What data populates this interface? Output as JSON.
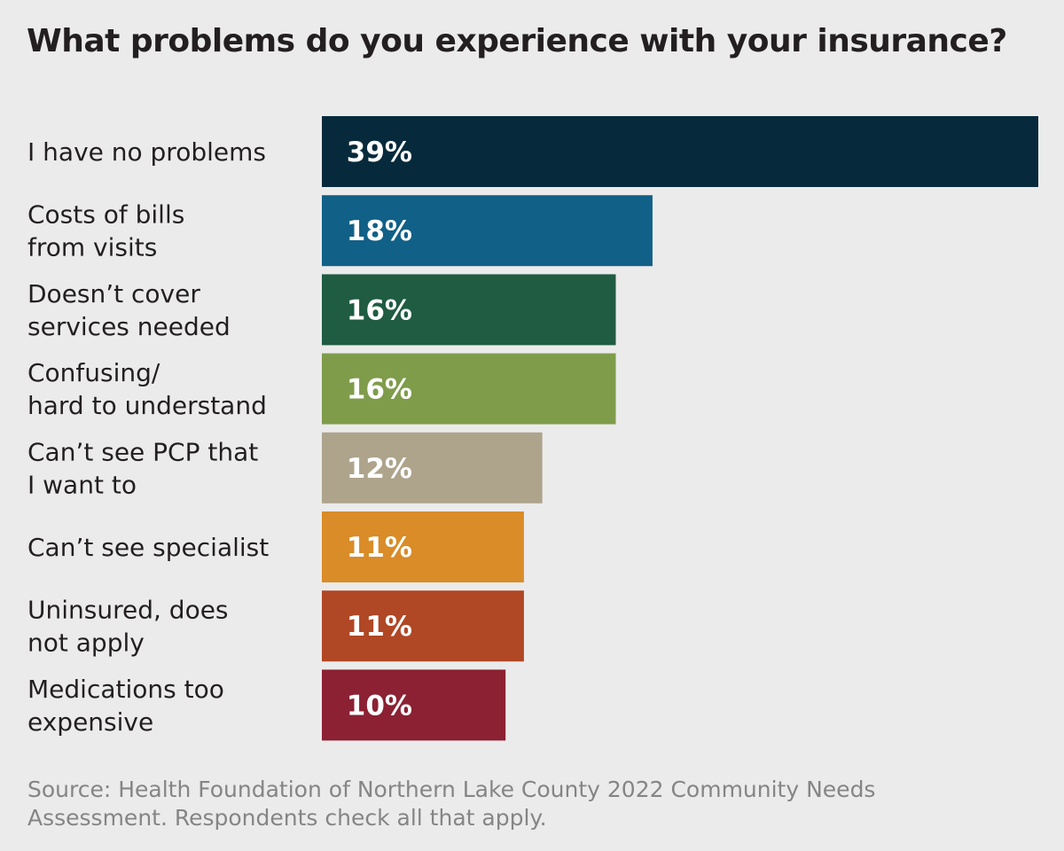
{
  "chart_data": {
    "type": "bar",
    "orientation": "horizontal",
    "title": "What problems do you experience with your insurance?",
    "categories": [
      [
        "I have no problems"
      ],
      [
        "Costs of bills",
        "from visits"
      ],
      [
        "Doesn’t cover",
        "services needed"
      ],
      [
        "Confusing/",
        "hard to understand"
      ],
      [
        "Can’t see PCP that",
        "I want to"
      ],
      [
        "Can’t see specialist"
      ],
      [
        "Uninsured, does",
        "not apply"
      ],
      [
        "Medications too",
        "expensive"
      ]
    ],
    "values": [
      39,
      18,
      16,
      16,
      12,
      11,
      11,
      10
    ],
    "value_labels": [
      "39%",
      "18%",
      "16%",
      "16%",
      "12%",
      "11%",
      "11%",
      "10%"
    ],
    "colors": [
      "#062a3b",
      "#116087",
      "#1f5c42",
      "#7f9c4b",
      "#aea48c",
      "#d98c28",
      "#b04725",
      "#8b2133"
    ],
    "xlim": [
      0,
      39
    ],
    "unit": "%",
    "grid": false,
    "legend": "none",
    "source": "Source: Health Foundation of Northern Lake County 2022 Community Needs Assessment. Respondents check all that apply."
  }
}
